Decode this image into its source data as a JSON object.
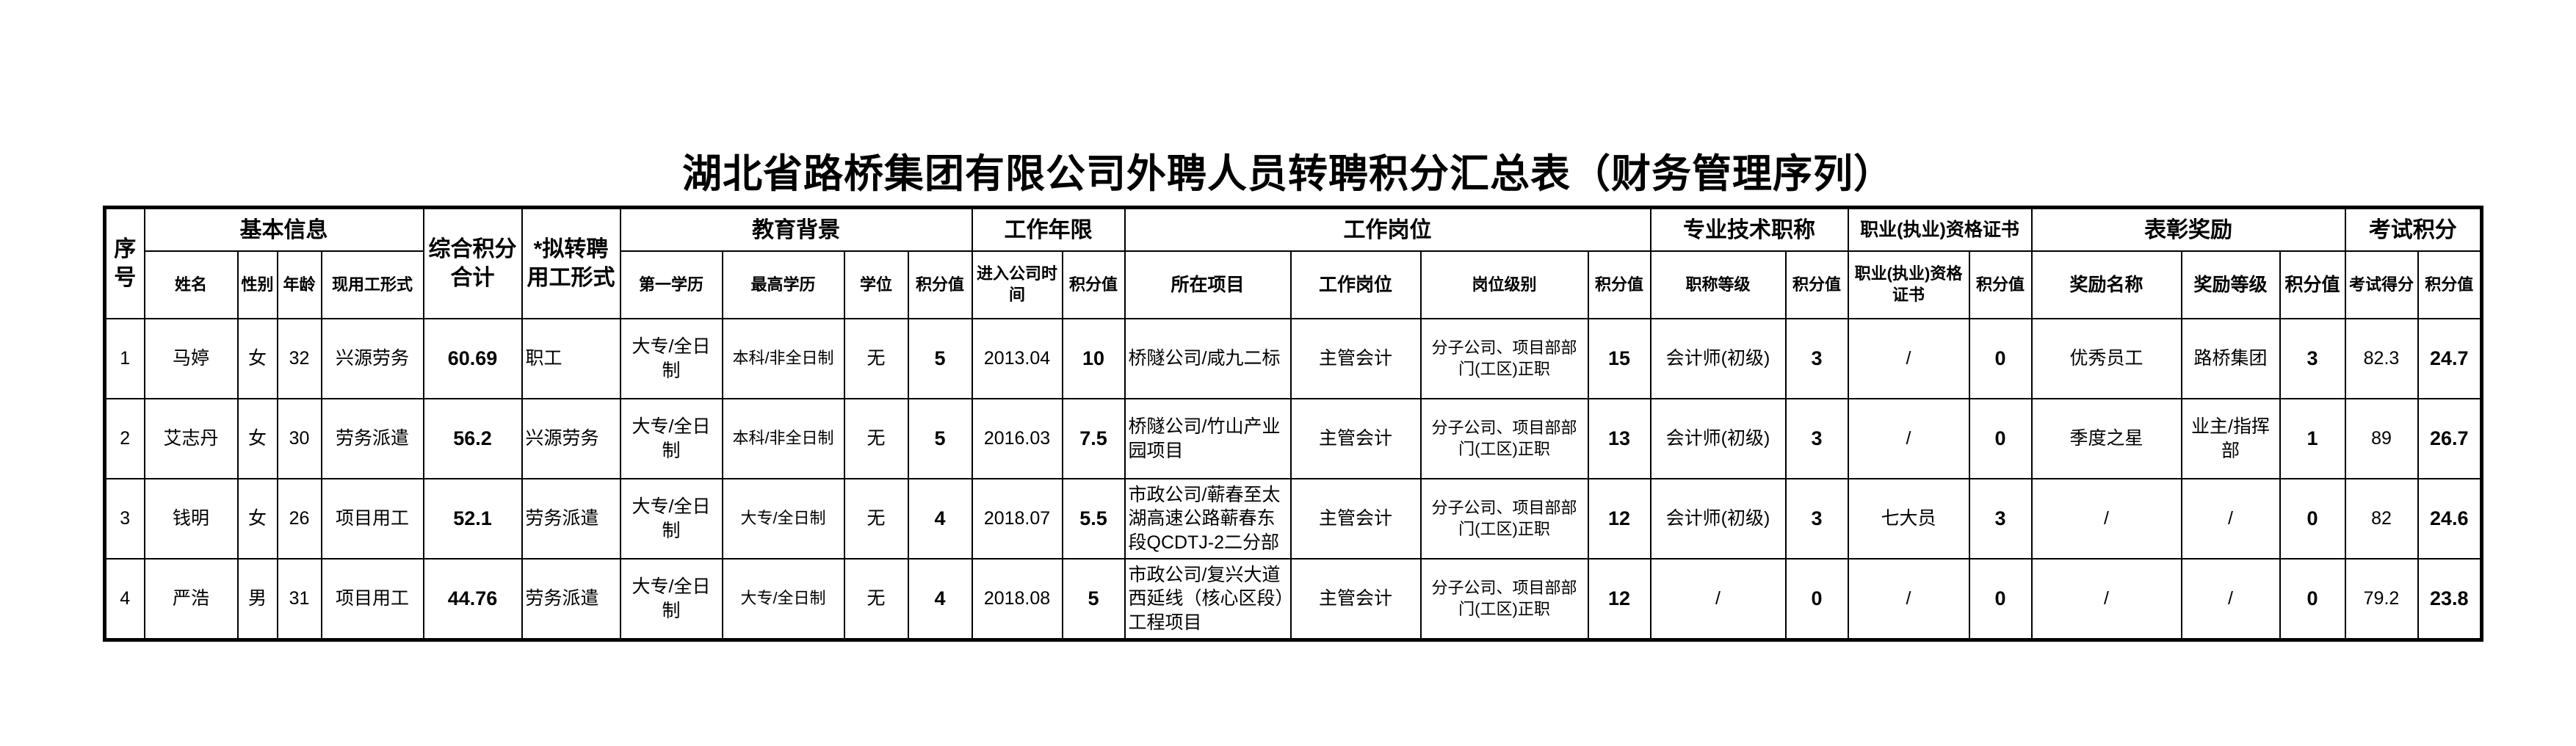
{
  "title": "湖北省路桥集团有限公司外聘人员转聘积分汇总表（财务管理序列）",
  "header_groups": {
    "seq": "序号",
    "basic": "基本信息",
    "total": "综合积分合计",
    "proposed": "*拟转聘用工形式",
    "education": "教育背景",
    "years": "工作年限",
    "post": "工作岗位",
    "title_grade": "专业技术职称",
    "cert": "职业(执业)资格证书",
    "award": "表彰奖励",
    "exam": "考试积分"
  },
  "columns": {
    "name": "姓名",
    "gender": "性别",
    "age": "年龄",
    "current_form": "现用工形式",
    "first_edu": "第一学历",
    "highest_edu": "最高学历",
    "degree": "学位",
    "edu_score": "积分值",
    "join_date": "进入公司时间",
    "years_score": "积分值",
    "project": "所在项目",
    "post": "工作岗位",
    "post_level": "岗位级别",
    "post_score": "积分值",
    "title_level": "职称等级",
    "title_score": "积分值",
    "cert": "职业(执业)资格证书",
    "cert_score": "积分值",
    "award_name": "奖励名称",
    "award_level": "奖励等级",
    "award_score": "积分值",
    "exam_score": "考试得分",
    "exam_points": "积分值"
  },
  "rows": [
    {
      "seq": "1",
      "name": "马婷",
      "gender": "女",
      "age": "32",
      "current_form": "兴源劳务",
      "total": "60.69",
      "proposed": "职工",
      "first_edu": "大专/全日制",
      "highest_edu": "本科/非全日制",
      "degree": "无",
      "edu_score": "5",
      "join_date": "2013.04",
      "years_score": "10",
      "project": "桥隧公司/咸九二标",
      "post": "主管会计",
      "post_level": "分子公司、项目部部门(工区)正职",
      "post_score": "15",
      "title_level": "会计师(初级)",
      "title_score": "3",
      "cert": "/",
      "cert_score": "0",
      "award_name": "优秀员工",
      "award_level": "路桥集团",
      "award_score": "3",
      "exam_score": "82.3",
      "exam_points": "24.7"
    },
    {
      "seq": "2",
      "name": "艾志丹",
      "gender": "女",
      "age": "30",
      "current_form": "劳务派遣",
      "total": "56.2",
      "proposed": "兴源劳务",
      "first_edu": "大专/全日制",
      "highest_edu": "本科/非全日制",
      "degree": "无",
      "edu_score": "5",
      "join_date": "2016.03",
      "years_score": "7.5",
      "project": "桥隧公司/竹山产业园项目",
      "post": "主管会计",
      "post_level": "分子公司、项目部部门(工区)正职",
      "post_score": "13",
      "title_level": "会计师(初级)",
      "title_score": "3",
      "cert": "/",
      "cert_score": "0",
      "award_name": "季度之星",
      "award_level": "业主/指挥部",
      "award_score": "1",
      "exam_score": "89",
      "exam_points": "26.7"
    },
    {
      "seq": "3",
      "name": "钱明",
      "gender": "女",
      "age": "26",
      "current_form": "项目用工",
      "total": "52.1",
      "proposed": "劳务派遣",
      "first_edu": "大专/全日制",
      "highest_edu": "大专/全日制",
      "degree": "无",
      "edu_score": "4",
      "join_date": "2018.07",
      "years_score": "5.5",
      "project": "市政公司/蕲春至太湖高速公路蕲春东段QCDTJ-2二分部",
      "post": "主管会计",
      "post_level": "分子公司、项目部部门(工区)正职",
      "post_score": "12",
      "title_level": "会计师(初级)",
      "title_score": "3",
      "cert": "七大员",
      "cert_score": "3",
      "award_name": "/",
      "award_level": "/",
      "award_score": "0",
      "exam_score": "82",
      "exam_points": "24.6"
    },
    {
      "seq": "4",
      "name": "严浩",
      "gender": "男",
      "age": "31",
      "current_form": "项目用工",
      "total": "44.76",
      "proposed": "劳务派遣",
      "first_edu": "大专/全日制",
      "highest_edu": "大专/全日制",
      "degree": "无",
      "edu_score": "4",
      "join_date": "2018.08",
      "years_score": "5",
      "project": "市政公司/复兴大道西延线（核心区段）工程项目",
      "post": "主管会计",
      "post_level": "分子公司、项目部部门(工区)正职",
      "post_score": "12",
      "title_level": "/",
      "title_score": "0",
      "cert": "/",
      "cert_score": "0",
      "award_name": "/",
      "award_level": "/",
      "award_score": "0",
      "exam_score": "79.2",
      "exam_points": "23.8"
    }
  ]
}
